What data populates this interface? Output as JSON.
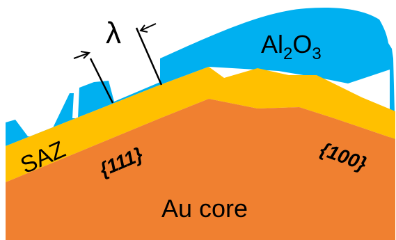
{
  "labels": {
    "lambda": "λ",
    "al2o3": {
      "main": "Al",
      "sub1": "2",
      "mid": "O",
      "sub2": "3"
    },
    "saz": "SAZ",
    "facet_111": "{111}",
    "facet_100": "{100}",
    "core": "Au core"
  },
  "colors": {
    "al2o3": "#00b0f0",
    "saz": "#ffc000",
    "core": "#f08030",
    "line": "#000000",
    "background": "#ffffff"
  }
}
